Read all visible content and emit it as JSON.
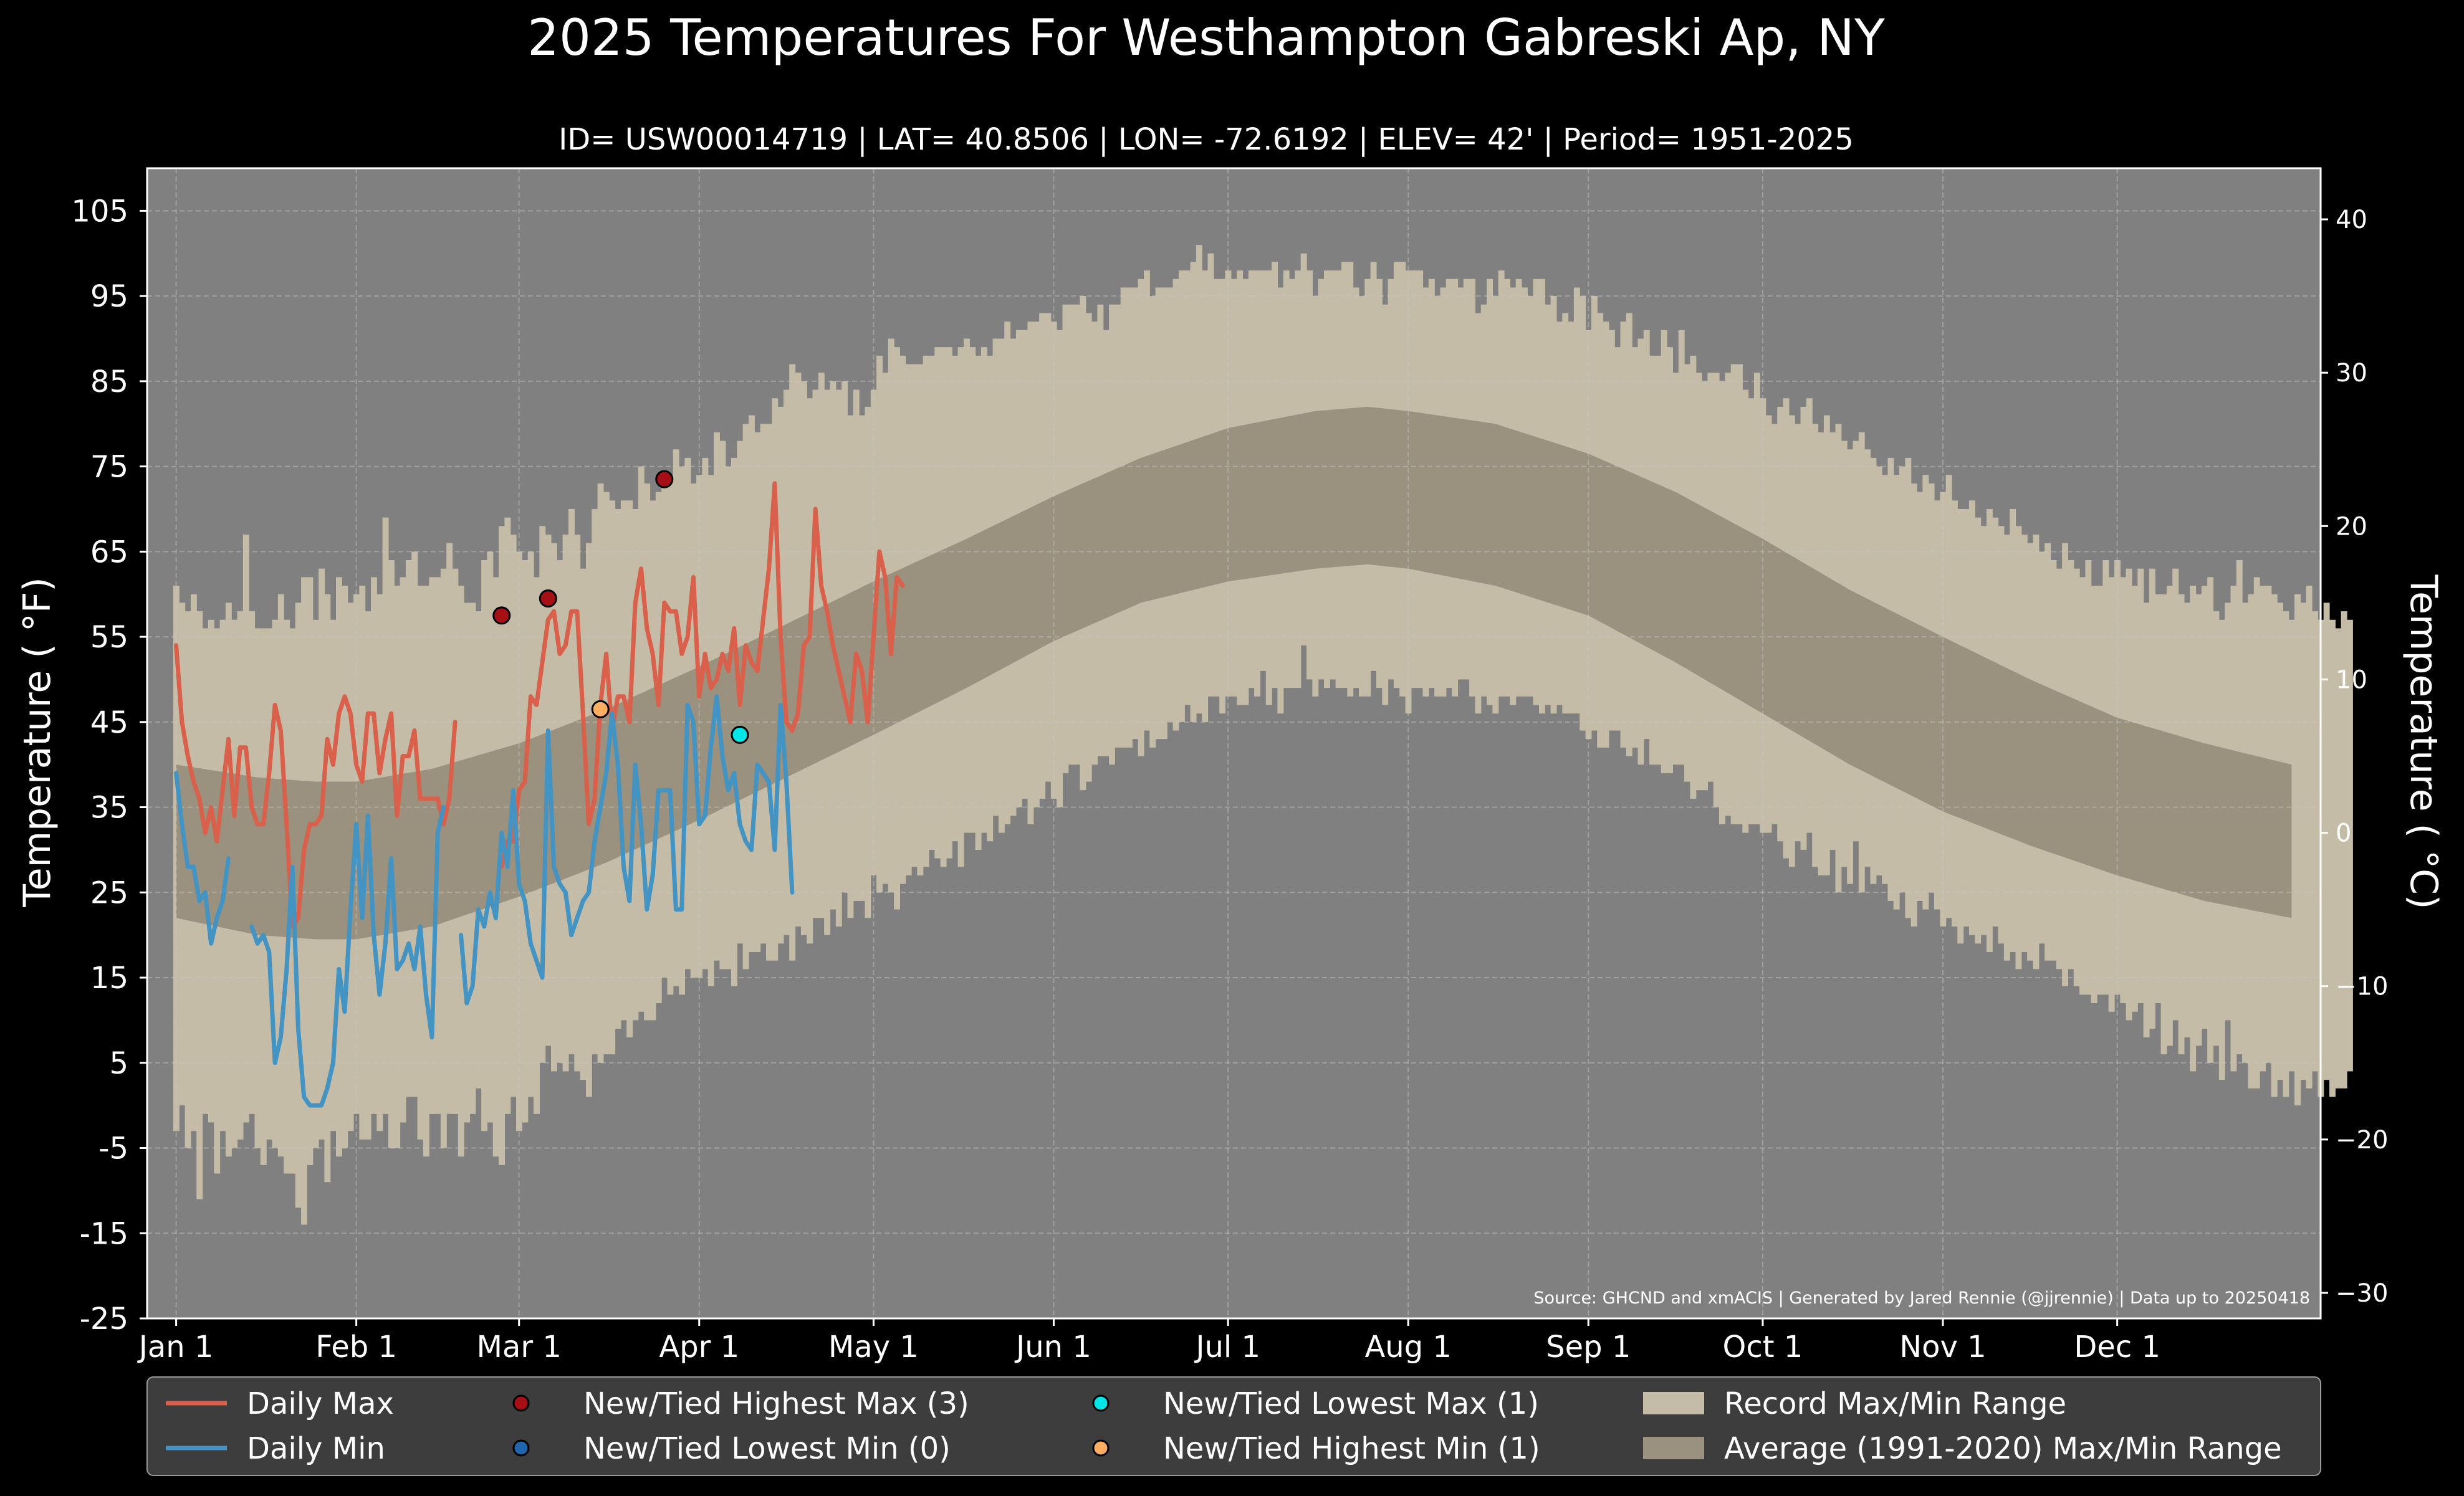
{
  "chart_data": {
    "type": "line",
    "title": "2025 Temperatures For Westhampton Gabreski Ap, NY",
    "subtitle": "ID= USW00014719 | LAT= 40.8506 | LON= -72.6192 | ELEV= 42' | Period= 1951-2025",
    "ylabel_left": "Temperature ( $^\\circ$F)",
    "ylabel_left_display": "Temperature ( °F)",
    "ylabel_right_display": "Temperature ( °C)",
    "source": "Source: GHCND and xmACIS | Generated by Jared Rennie (@jjrennie) | Data up to 20250418",
    "ylim": [
      -25,
      110
    ],
    "y_ticks": [
      105,
      95,
      85,
      75,
      65,
      55,
      45,
      35,
      25,
      15,
      5,
      -5,
      -15,
      -25
    ],
    "y_ticks_c": [
      40,
      30,
      20,
      10,
      0,
      -10,
      -20,
      -30
    ],
    "y_ticks_c_labels": [
      "40",
      "30",
      "20",
      "10",
      "0",
      "−10",
      "−20",
      "−30"
    ],
    "x_ticks": [
      "Jan 1",
      "Feb 1",
      "Mar 1",
      "Apr 1",
      "May 1",
      "Jun 1",
      "Jul 1",
      "Aug 1",
      "Sep 1",
      "Oct 1",
      "Nov 1",
      "Dec 1"
    ],
    "x_tick_days": [
      1,
      32,
      60,
      91,
      121,
      152,
      182,
      213,
      244,
      274,
      305,
      335
    ],
    "xlim_days": [
      -4,
      370
    ],
    "grid": true,
    "legend_position": "bottom",
    "colors": {
      "figure_bg": "#000000",
      "plot_bg": "#808080",
      "record_range": "#c4bca6",
      "average_range": "#9a917f",
      "daily_max": "#d9604a",
      "daily_min": "#4393c3",
      "new_highest_max": "#a50f15",
      "new_lowest_min": "#2166ac",
      "new_lowest_max": "#00e5e5",
      "new_highest_min": "#fdae61",
      "legend_bg": "#3d3d3d"
    },
    "average_range": {
      "days": [
        1,
        15,
        25,
        32,
        45,
        60,
        75,
        91,
        106,
        121,
        137,
        152,
        167,
        182,
        197,
        206,
        213,
        228,
        244,
        259,
        274,
        289,
        305,
        320,
        335,
        350,
        365
      ],
      "max": [
        40,
        38.5,
        38,
        38,
        39.5,
        42.5,
        46.5,
        51.5,
        56.5,
        61.5,
        66.5,
        71.5,
        76,
        79.5,
        81.5,
        82,
        81.5,
        80,
        76.5,
        72,
        66.5,
        60.5,
        55,
        50,
        45.5,
        42.5,
        40
      ],
      "min": [
        22,
        20,
        19.5,
        19.5,
        21,
        24.5,
        28.5,
        33.5,
        38.5,
        43.5,
        49,
        54.5,
        59,
        61.5,
        63,
        63.5,
        63,
        61,
        57.5,
        52,
        46,
        40,
        34.5,
        30.5,
        27,
        24,
        22
      ]
    },
    "record_max": [
      61,
      59,
      58,
      60,
      58,
      56,
      57,
      56,
      57,
      59,
      57,
      58,
      67,
      58,
      56,
      56,
      56,
      57,
      60,
      57,
      56,
      59,
      62,
      62,
      57,
      63,
      60,
      57,
      62,
      61,
      59,
      60,
      61,
      58,
      62,
      60,
      69,
      64,
      61,
      62,
      64,
      65,
      61,
      61,
      62,
      62,
      63,
      66,
      63,
      61,
      59,
      59,
      58,
      64,
      65,
      62,
      68,
      69,
      67,
      65,
      64,
      65,
      62,
      68,
      67,
      66,
      64,
      67,
      70,
      67,
      63,
      66,
      70,
      73,
      72,
      71,
      70,
      71,
      71,
      70,
      75,
      73,
      71,
      72,
      74,
      74,
      77,
      75,
      76,
      73,
      74,
      76,
      74,
      79,
      78,
      75,
      76,
      78,
      80,
      81,
      79,
      80,
      80,
      83,
      82,
      84,
      87,
      86,
      85,
      83,
      84,
      86,
      84,
      85,
      84,
      85,
      81,
      84,
      81,
      82,
      84,
      88,
      86,
      90,
      89,
      88,
      87,
      87,
      87,
      88,
      88,
      89,
      89,
      89,
      88,
      89,
      90,
      89,
      88,
      89,
      88,
      90,
      90,
      92,
      90,
      91,
      91,
      92,
      92,
      93,
      93,
      92,
      91,
      94,
      94,
      94,
      95,
      93,
      92,
      94,
      91,
      94,
      94,
      96,
      96,
      96,
      97,
      98,
      95,
      96,
      96,
      96,
      97,
      98,
      98,
      99,
      101,
      98,
      100,
      97,
      97,
      98,
      97,
      98,
      97,
      98,
      98,
      98,
      98,
      99,
      96,
      98,
      97,
      98,
      100,
      98,
      95,
      97,
      98,
      98,
      98,
      99,
      99,
      96,
      95,
      97,
      99,
      97,
      94,
      97,
      99,
      99,
      98,
      98,
      98,
      96,
      97,
      95,
      96,
      97,
      97,
      96,
      97,
      97,
      93,
      94,
      97,
      95,
      98,
      97,
      96,
      97,
      96,
      95,
      97,
      97,
      94,
      95,
      92,
      93,
      92,
      96,
      95,
      91,
      95,
      93,
      92,
      91,
      89,
      92,
      93,
      89,
      90,
      91,
      88,
      88,
      91,
      89,
      86,
      91,
      87,
      88,
      86,
      85,
      86,
      86,
      85,
      86,
      87,
      87,
      84,
      83,
      86,
      83,
      81,
      80,
      82,
      83,
      81,
      80,
      82,
      83,
      80,
      79,
      81,
      79,
      80,
      78,
      77,
      78,
      79,
      77,
      76,
      75,
      74,
      76,
      74,
      75,
      76,
      73,
      72,
      74,
      73,
      71,
      72,
      74,
      71,
      70,
      70,
      71,
      69,
      68,
      70,
      69,
      68,
      67,
      70,
      68,
      67,
      66,
      67,
      65,
      66,
      64,
      63,
      66,
      64,
      63,
      62,
      64,
      61,
      61,
      64,
      62,
      64,
      62,
      63,
      61,
      63,
      59,
      63,
      60,
      60,
      61,
      63,
      60,
      59,
      61,
      60,
      61,
      62,
      58,
      57,
      59,
      61,
      64,
      59,
      60,
      62,
      61,
      61,
      60,
      59,
      58,
      57,
      60,
      59,
      61,
      58,
      57,
      59,
      57,
      56,
      58,
      57,
      59
    ],
    "record_min": [
      -3,
      0,
      -5,
      -3,
      -11,
      -1,
      -2,
      -8,
      -3,
      -6,
      -5,
      -4,
      -2,
      -1,
      -5,
      -7,
      -4,
      -5,
      -6,
      -8,
      -8,
      -12,
      -14,
      -7,
      -5,
      -4,
      -9,
      -3,
      -6,
      -5,
      -3,
      -1,
      -4,
      -4,
      -1,
      -3,
      -1,
      -5,
      -5,
      -2,
      1,
      1,
      -4,
      -6,
      -1,
      -1,
      -5,
      -1,
      -1,
      -6,
      -2,
      -1,
      2,
      -3,
      -2,
      -6,
      -7,
      -1,
      1,
      -3,
      -2,
      1,
      -1,
      5,
      7,
      4,
      5,
      4,
      6,
      4,
      3,
      1,
      6,
      5,
      6,
      6,
      9,
      10,
      8,
      10,
      11,
      10,
      10,
      12,
      15,
      13,
      14,
      13,
      16,
      15,
      15,
      16,
      14,
      17,
      16,
      16,
      14,
      19,
      16,
      18,
      18,
      19,
      17,
      17,
      19,
      20,
      17,
      21,
      20,
      19,
      22,
      22,
      20,
      23,
      21,
      25,
      22,
      24,
      24,
      22,
      27,
      25,
      26,
      25,
      23,
      26,
      27,
      28,
      27,
      28,
      30,
      29,
      28,
      29,
      31,
      28,
      32,
      32,
      30,
      32,
      31,
      34,
      32,
      33,
      34,
      35,
      36,
      33,
      35,
      36,
      38,
      36,
      35,
      39,
      40,
      40,
      37,
      38,
      40,
      41,
      41,
      40,
      42,
      42,
      42,
      43,
      41,
      44,
      42,
      43,
      43,
      45,
      44,
      45,
      47,
      45,
      46,
      45,
      48,
      48,
      46,
      48,
      48,
      47,
      47,
      49,
      48,
      51,
      47,
      49,
      46,
      49,
      49,
      49,
      54,
      50,
      48,
      50,
      49,
      50,
      49,
      49,
      48,
      49,
      48,
      48,
      51,
      49,
      47,
      50,
      49,
      48,
      46,
      49,
      49,
      48,
      49,
      48,
      48,
      49,
      48,
      50,
      50,
      48,
      46,
      48,
      47,
      46,
      48,
      48,
      47,
      48,
      48,
      48,
      47,
      46,
      47,
      46,
      47,
      46,
      46,
      46,
      44,
      43,
      44,
      42,
      42,
      44,
      44,
      42,
      41,
      42,
      40,
      43,
      40,
      40,
      39,
      39,
      40,
      40,
      38,
      36,
      37,
      37,
      38,
      35,
      33,
      34,
      33,
      33,
      32,
      33,
      33,
      32,
      32,
      33,
      31,
      29,
      28,
      31,
      30,
      32,
      28,
      27,
      27,
      30,
      25,
      28,
      26,
      31,
      25,
      28,
      26,
      27,
      26,
      24,
      23,
      25,
      22,
      21,
      24,
      23,
      25,
      23,
      21,
      22,
      21,
      19,
      21,
      20,
      19,
      20,
      18,
      21,
      19,
      17,
      18,
      16,
      18,
      17,
      16,
      19,
      17,
      17,
      16,
      14,
      16,
      14,
      13,
      13,
      12,
      13,
      13,
      11,
      13,
      12,
      10,
      11,
      12,
      8,
      9,
      12,
      6,
      7,
      10,
      6,
      8,
      4,
      7,
      9,
      5,
      7,
      3,
      10,
      4,
      6,
      5,
      2,
      2,
      4,
      5,
      1,
      3,
      1,
      4,
      0,
      3,
      2,
      4,
      1,
      3,
      1,
      2,
      2,
      4
    ],
    "series": [
      {
        "name": "Daily Max",
        "start_day": 1,
        "values": [
          54,
          45,
          41,
          38,
          36,
          32,
          35,
          31,
          37,
          43,
          34,
          42,
          42,
          35,
          33,
          33,
          39,
          47,
          44,
          33,
          21,
          22,
          30,
          33,
          33,
          34,
          43,
          40,
          46,
          48,
          46,
          40,
          38,
          46,
          46,
          39,
          43,
          46,
          34,
          41,
          41,
          44,
          36,
          36,
          36,
          36,
          33,
          36,
          45,
          null,
          null,
          null,
          null,
          null,
          null,
          null,
          28,
          31,
          31,
          37,
          38,
          48,
          47,
          52,
          57,
          58,
          53,
          54,
          58,
          58,
          46,
          33,
          36,
          47,
          53,
          44,
          48,
          48,
          45,
          59,
          63,
          56,
          53,
          47,
          59,
          58,
          58,
          53,
          55,
          62,
          48,
          53,
          49,
          50,
          53,
          51,
          56,
          47,
          54,
          52,
          51,
          57,
          63,
          73,
          55,
          45,
          44,
          46,
          54,
          55,
          70,
          61,
          58,
          54,
          51,
          48,
          45,
          53,
          51,
          45,
          55,
          65,
          62,
          53,
          62,
          61
        ]
      },
      {
        "name": "Daily Min",
        "start_day": 1,
        "values": [
          39,
          33,
          28,
          28,
          24,
          25,
          19,
          22,
          24,
          29,
          null,
          null,
          null,
          21,
          19,
          20,
          18,
          5,
          8,
          16,
          28,
          9,
          1,
          0,
          0,
          0,
          2,
          5,
          16,
          11,
          23,
          33,
          22,
          34,
          20,
          13,
          19,
          29,
          16,
          17,
          19,
          16,
          21,
          13,
          8,
          32,
          35,
          null,
          null,
          null,
          null,
          null,
          null,
          null,
          null,
          null,
          null,
          null,
          null,
          null,
          null,
          null,
          null,
          null,
          null,
          null,
          null,
          null,
          null,
          null,
          null,
          null,
          null,
          null,
          null,
          null,
          null,
          null,
          null,
          null,
          null,
          null,
          null,
          null,
          null,
          null,
          null,
          null,
          null,
          null,
          null,
          null,
          null,
          null,
          null,
          null,
          null,
          null,
          null,
          null,
          null,
          null,
          null,
          null,
          null,
          null,
          null,
          null,
          null,
          null,
          null,
          null,
          null,
          null,
          null,
          null,
          null,
          null,
          null,
          null,
          null,
          null,
          null,
          null,
          null,
          null
        ]
      },
      {
        "name": "Daily Min (cont.)",
        "start_day": 50,
        "values": [
          20,
          12,
          14,
          23,
          21,
          25,
          22,
          32,
          28,
          37,
          26,
          24,
          19,
          17,
          15,
          44,
          28,
          26,
          25,
          20,
          22,
          24,
          25,
          31,
          35,
          39,
          46,
          40,
          28,
          24,
          40,
          33,
          23,
          27,
          37,
          37,
          37,
          23,
          23,
          47,
          45,
          33,
          34,
          42,
          48,
          41,
          37,
          39,
          33,
          31,
          30,
          40,
          39,
          38,
          30,
          47,
          38,
          25
        ]
      }
    ],
    "records": [
      {
        "type": "New/Tied Highest Max",
        "day": 57,
        "value": 57.5
      },
      {
        "type": "New/Tied Highest Max",
        "day": 65,
        "value": 59.5
      },
      {
        "type": "New/Tied Highest Min",
        "day": 74,
        "value": 46.5
      },
      {
        "type": "New/Tied Highest Max",
        "day": 85,
        "value": 73.5
      },
      {
        "type": "New/Tied Lowest Max",
        "day": 98,
        "value": 43.5
      }
    ]
  },
  "legend": [
    {
      "label": "Daily Max",
      "kind": "line",
      "color_key": "daily_max"
    },
    {
      "label": "Daily Min",
      "kind": "line",
      "color_key": "daily_min"
    },
    {
      "label": "New/Tied Highest Max (3)",
      "kind": "dot",
      "color_key": "new_highest_max"
    },
    {
      "label": "New/Tied Lowest Min (0)",
      "kind": "dot",
      "color_key": "new_lowest_min"
    },
    {
      "label": "New/Tied Lowest Max (1)",
      "kind": "dot",
      "color_key": "new_lowest_max"
    },
    {
      "label": "New/Tied Highest Min (1)",
      "kind": "dot",
      "color_key": "new_highest_min"
    },
    {
      "label": "Record Max/Min Range",
      "kind": "patch",
      "color_key": "record_range"
    },
    {
      "label": "Average (1991-2020) Max/Min Range",
      "kind": "patch",
      "color_key": "average_range"
    }
  ]
}
